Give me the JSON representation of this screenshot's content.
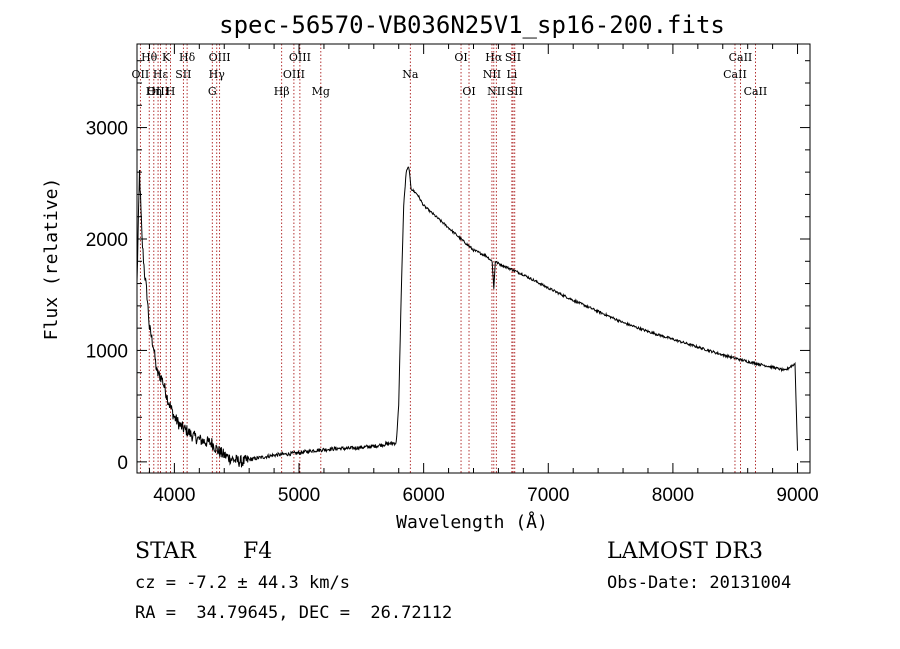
{
  "chart_data": {
    "type": "line",
    "title": "spec-56570-VB036N25V1_sp16-200.fits",
    "xlabel": "Wavelength (Å)",
    "ylabel": "Flux (relative)",
    "xlim": [
      3700,
      9100
    ],
    "ylim": [
      -100,
      3750
    ],
    "xticks": [
      4000,
      5000,
      6000,
      7000,
      8000,
      9000
    ],
    "yticks": [
      0,
      1000,
      2000,
      3000
    ],
    "spectrum": {
      "name": "flux",
      "x": [
        3700,
        3720,
        3740,
        3760,
        3780,
        3800,
        3830,
        3860,
        3900,
        3950,
        4000,
        4050,
        4100,
        4150,
        4200,
        4250,
        4300,
        4350,
        4400,
        4450,
        4500,
        4550,
        4600,
        4700,
        4800,
        4900,
        5000,
        5100,
        5200,
        5300,
        5400,
        5500,
        5600,
        5700,
        5780,
        5800,
        5820,
        5840,
        5860,
        5880,
        5900,
        5950,
        6000,
        6050,
        6100,
        6200,
        6300,
        6400,
        6500,
        6550,
        6563,
        6575,
        6600,
        6700,
        6800,
        6900,
        7000,
        7200,
        7400,
        7600,
        7800,
        8000,
        8200,
        8400,
        8600,
        8800,
        8900,
        8950,
        8980,
        9000
      ],
      "y": [
        1600,
        2600,
        2000,
        1700,
        1500,
        1200,
        1050,
        800,
        750,
        550,
        400,
        320,
        280,
        230,
        200,
        180,
        170,
        100,
        60,
        30,
        10,
        0,
        20,
        40,
        60,
        70,
        80,
        100,
        110,
        120,
        120,
        130,
        140,
        160,
        170,
        500,
        1500,
        2300,
        2600,
        2650,
        2450,
        2400,
        2300,
        2250,
        2200,
        2100,
        2000,
        1900,
        1850,
        1800,
        1550,
        1800,
        1780,
        1730,
        1680,
        1620,
        1560,
        1450,
        1350,
        1250,
        1170,
        1100,
        1030,
        960,
        900,
        850,
        820,
        860,
        880,
        100
      ]
    },
    "spectral_lines": [
      {
        "name": "Hθ",
        "wl": 3798,
        "row": 0
      },
      {
        "name": "OII",
        "wl": 3727,
        "row": 1
      },
      {
        "name": "OIII",
        "wl": 3869,
        "row": 2
      },
      {
        "name": "Hδ",
        "wl": 4102,
        "row": 0
      },
      {
        "name": "K",
        "wl": 3934,
        "row": 0
      },
      {
        "name": "Hε",
        "wl": 3889,
        "row": 1
      },
      {
        "name": "SII",
        "wl": 4072,
        "row": 1
      },
      {
        "name": "Hη",
        "wl": 3835,
        "row": 2
      },
      {
        "name": "H",
        "wl": 3969,
        "row": 2
      },
      {
        "name": "OIII",
        "wl": 4363,
        "row": 0
      },
      {
        "name": "Hγ",
        "wl": 4340,
        "row": 1
      },
      {
        "name": "G",
        "wl": 4304,
        "row": 2
      },
      {
        "name": "Hβ",
        "wl": 4861,
        "row": 2
      },
      {
        "name": "OIII",
        "wl": 5007,
        "row": 0
      },
      {
        "name": "OIII",
        "wl": 4959,
        "row": 1
      },
      {
        "name": "Mg",
        "wl": 5175,
        "row": 2
      },
      {
        "name": "Na",
        "wl": 5893,
        "row": 1
      },
      {
        "name": "OI",
        "wl": 6300,
        "row": 0
      },
      {
        "name": "OI",
        "wl": 6364,
        "row": 2
      },
      {
        "name": "Hα",
        "wl": 6563,
        "row": 0
      },
      {
        "name": "SII",
        "wl": 6717,
        "row": 0
      },
      {
        "name": "NII",
        "wl": 6548,
        "row": 1
      },
      {
        "name": "Li",
        "wl": 6708,
        "row": 1
      },
      {
        "name": "NII",
        "wl": 6583,
        "row": 2
      },
      {
        "name": "SII",
        "wl": 6731,
        "row": 2
      },
      {
        "name": "CaII",
        "wl": 8542,
        "row": 0
      },
      {
        "name": "CaII",
        "wl": 8498,
        "row": 1
      },
      {
        "name": "CaII",
        "wl": 8662,
        "row": 2
      }
    ]
  },
  "footer": {
    "class_label": "STAR",
    "subclass": "F4",
    "survey": "LAMOST DR3",
    "cz_text": "cz = -7.2 ± 44.3 km/s",
    "obs_date": "Obs-Date: 20131004",
    "coords": "RA =  34.79645, DEC =  26.72112"
  },
  "colors": {
    "spectrum": "#000000",
    "line_markers": "#a00000",
    "axes": "#000000"
  }
}
